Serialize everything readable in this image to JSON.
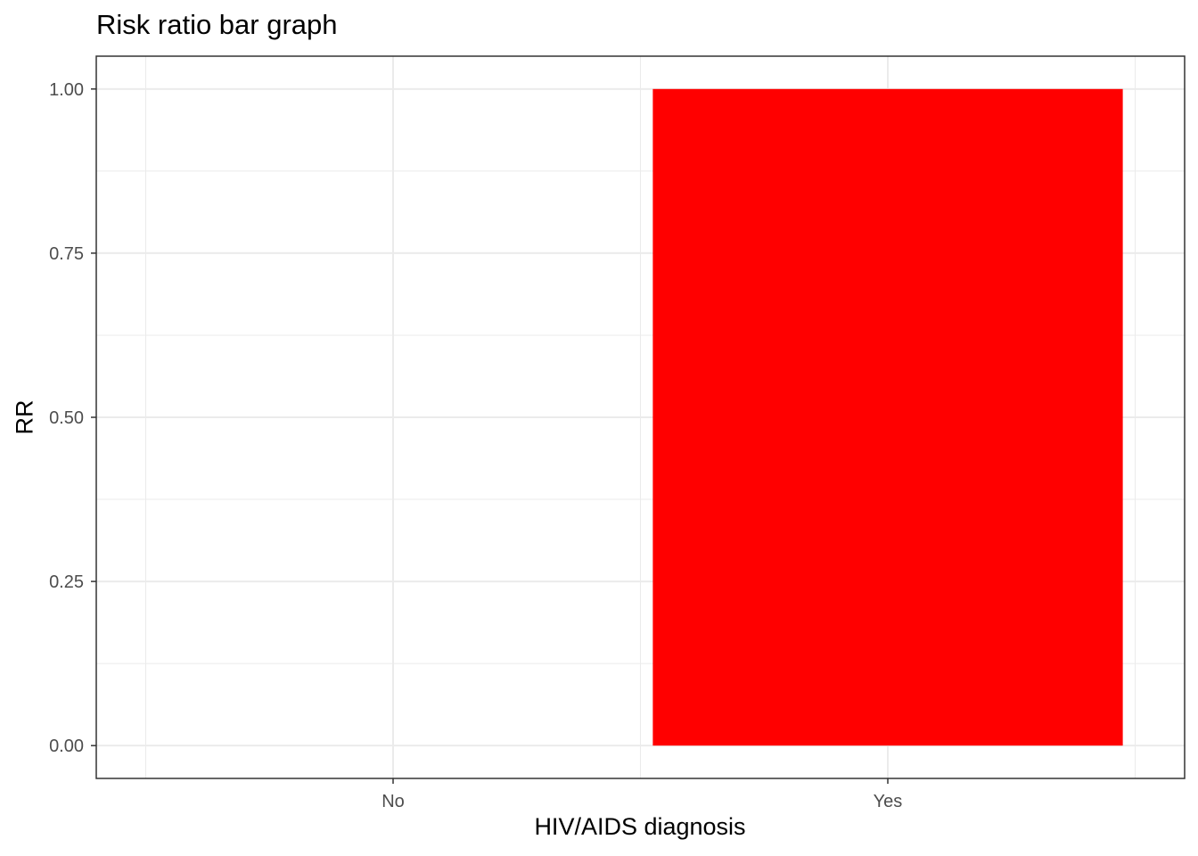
{
  "chart_data": {
    "type": "bar",
    "title": "Risk ratio bar graph",
    "xlabel": "HIV/AIDS diagnosis",
    "ylabel": "RR",
    "categories": [
      "No",
      "Yes"
    ],
    "values": [
      0,
      1.0
    ],
    "bar_color": "#ff0000",
    "ylim": [
      -0.05,
      1.05
    ],
    "yticks": [
      0.0,
      0.25,
      0.5,
      0.75,
      1.0
    ],
    "ytick_labels": [
      "0.00",
      "0.25",
      "0.50",
      "0.75",
      "1.00"
    ],
    "grid": true,
    "legend": "none"
  }
}
